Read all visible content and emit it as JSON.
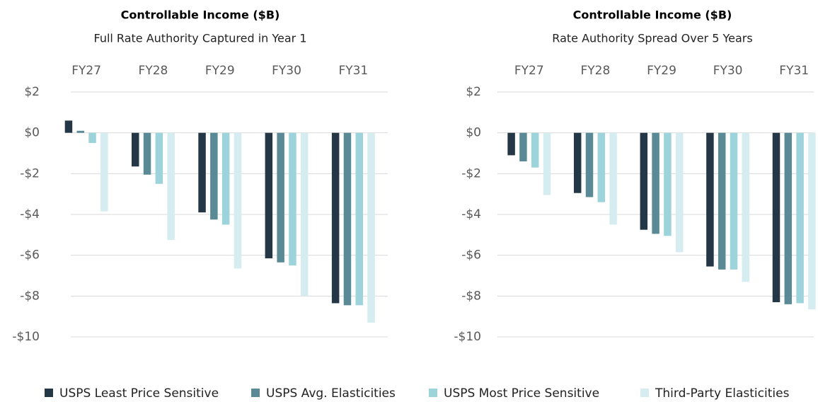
{
  "chart_data": [
    {
      "type": "bar",
      "title": "Controllable Income ($B)",
      "subtitle": "Full Rate Authority Captured in Year 1",
      "categories": [
        "FY27",
        "FY28",
        "FY29",
        "FY30",
        "FY31"
      ],
      "series": [
        {
          "name": "USPS Least Price Sensitive",
          "color": "#243746",
          "values": [
            0.6,
            -1.65,
            -3.9,
            -6.15,
            -8.35
          ]
        },
        {
          "name": "USPS Avg. Elasticities",
          "color": "#5a8a96",
          "values": [
            0.1,
            -2.05,
            -4.25,
            -6.35,
            -8.45
          ]
        },
        {
          "name": "USPS Most Price Sensitive",
          "color": "#9dd4dc",
          "values": [
            -0.5,
            -2.5,
            -4.5,
            -6.5,
            -8.45
          ]
        },
        {
          "name": "Third-Party Elasticities",
          "color": "#d5edf0",
          "values": [
            -3.85,
            -5.25,
            -6.65,
            -8.0,
            -9.3
          ]
        }
      ],
      "ylim": [
        -10,
        2
      ],
      "yticks": [
        {
          "value": -10,
          "label": "-$10"
        },
        {
          "value": -8,
          "label": "-$8"
        },
        {
          "value": -6,
          "label": "-$6"
        },
        {
          "value": -4,
          "label": "-$4"
        },
        {
          "value": -2,
          "label": "-$2"
        },
        {
          "value": 0,
          "label": "$0"
        },
        {
          "value": 2,
          "label": "$2"
        }
      ],
      "grid": true
    },
    {
      "type": "bar",
      "title": "Controllable Income ($B)",
      "subtitle": "Rate Authority Spread Over 5 Years",
      "categories": [
        "FY27",
        "FY28",
        "FY29",
        "FY30",
        "FY31"
      ],
      "series": [
        {
          "name": "USPS Least Price Sensitive",
          "color": "#243746",
          "values": [
            -1.1,
            -2.95,
            -4.75,
            -6.55,
            -8.3
          ]
        },
        {
          "name": "USPS Avg. Elasticities",
          "color": "#5a8a96",
          "values": [
            -1.4,
            -3.15,
            -4.95,
            -6.7,
            -8.4
          ]
        },
        {
          "name": "USPS Most Price Sensitive",
          "color": "#9dd4dc",
          "values": [
            -1.7,
            -3.4,
            -5.05,
            -6.7,
            -8.35
          ]
        },
        {
          "name": "Third-Party Elasticities",
          "color": "#d5edf0",
          "values": [
            -3.05,
            -4.5,
            -5.85,
            -7.3,
            -8.65
          ]
        }
      ],
      "ylim": [
        -10,
        2
      ],
      "yticks": [
        {
          "value": -10,
          "label": "-$10"
        },
        {
          "value": -8,
          "label": "-$8"
        },
        {
          "value": -6,
          "label": "-$6"
        },
        {
          "value": -4,
          "label": "-$4"
        },
        {
          "value": -2,
          "label": "-$2"
        },
        {
          "value": 0,
          "label": "$0"
        },
        {
          "value": 2,
          "label": "$2"
        }
      ],
      "grid": true
    }
  ]
}
